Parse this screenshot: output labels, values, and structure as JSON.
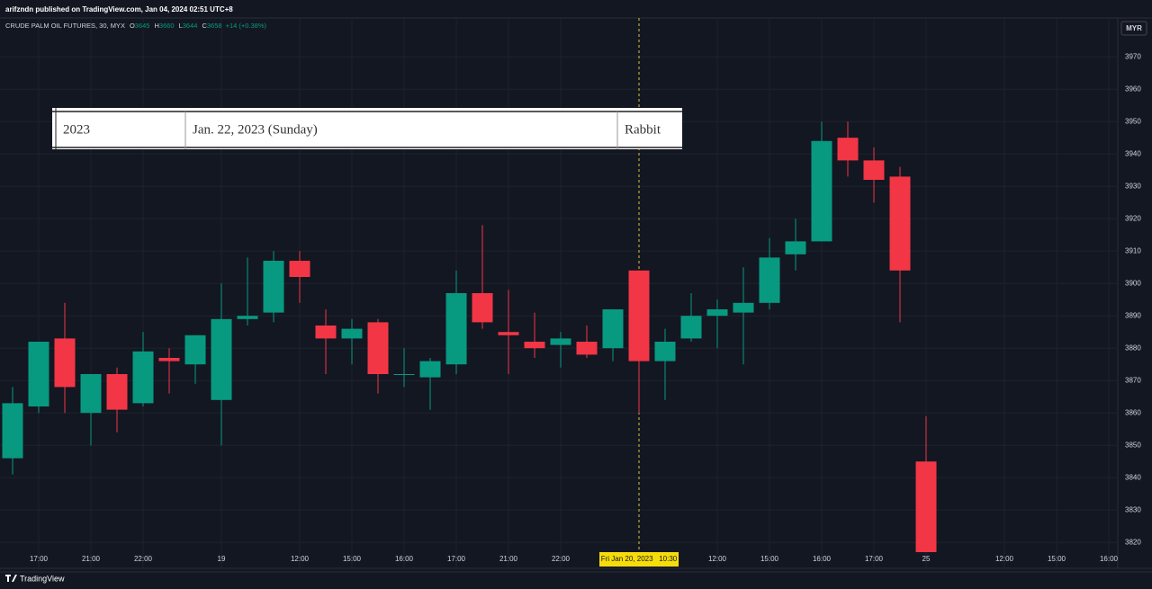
{
  "header": {
    "publisher": "arifzndn published on TradingView.com, Jan 04, 2024 02:51 UTC+8"
  },
  "chart_data": {
    "type": "candlestick",
    "legend": {
      "name": "CRUDE PALM OIL FUTURES, 30, MYX",
      "items": [
        {
          "label": "O",
          "value": 3645
        },
        {
          "label": "H",
          "value": 3660
        },
        {
          "label": "L",
          "value": 3644
        },
        {
          "label": "C",
          "value": 3658
        }
      ],
      "change": "+14 (+0.38%)"
    },
    "currency": "MYR",
    "categories": [
      null,
      "17:00",
      null,
      "21:00",
      null,
      "22:00",
      null,
      null,
      "19",
      null,
      null,
      "12:00",
      null,
      "15:00",
      null,
      "16:00",
      null,
      "17:00",
      null,
      "21:00",
      null,
      "22:00",
      null,
      null,
      null,
      null,
      null,
      "12:00",
      null,
      "15:00",
      null,
      "16:00",
      null,
      "17:00",
      null,
      "25",
      null,
      null,
      "12:00",
      null,
      "15:00",
      null,
      "16:00"
    ],
    "crosshair": {
      "category": 24,
      "label": "Fri Jan 20, 2023   10:30"
    },
    "open": [
      3846,
      3862,
      3883,
      3860,
      3872,
      3863,
      3877,
      3875,
      3864,
      3889,
      3891,
      3907,
      3887,
      3883,
      3888,
      3872,
      3871,
      3875,
      3897,
      3885,
      3882,
      3881,
      3882,
      3880,
      3904,
      3876,
      3883,
      3890,
      3891,
      3894,
      3909,
      3913,
      3945,
      3938,
      3933,
      3845,
      null,
      null,
      null,
      null,
      null,
      null,
      null
    ],
    "high": [
      3868,
      3882,
      3894,
      3872,
      3874,
      3885,
      3880,
      3884,
      3900,
      3908,
      3910,
      3910,
      3892,
      3889,
      3889,
      3880,
      3877,
      3904,
      3918,
      3898,
      3891,
      3885,
      3887,
      3892,
      3904,
      3886,
      3897,
      3895,
      3905,
      3914,
      3920,
      3950,
      3950,
      3942,
      3936,
      3859,
      null,
      null,
      null,
      null,
      null,
      null,
      null
    ],
    "low": [
      3841,
      3860,
      3860,
      3850,
      3854,
      3862,
      3866,
      3869,
      3850,
      3887,
      3888,
      3894,
      3872,
      3875,
      3866,
      3868,
      3861,
      3872,
      3886,
      3872,
      3877,
      3874,
      3877,
      3876,
      3860,
      3864,
      3882,
      3880,
      3875,
      3892,
      3904,
      3913,
      3933,
      3925,
      3888,
      3817,
      null,
      null,
      null,
      null,
      null,
      null,
      null
    ],
    "close": [
      3863,
      3882,
      3868,
      3872,
      3861,
      3879,
      3876,
      3884,
      3889,
      3890,
      3907,
      3902,
      3883,
      3886,
      3872,
      3872,
      3876,
      3897,
      3888,
      3884,
      3880,
      3883,
      3878,
      3892,
      3876,
      3882,
      3890,
      3892,
      3894,
      3908,
      3913,
      3944,
      3938,
      3932,
      3904,
      3817,
      null,
      null,
      null,
      null,
      null,
      null,
      null
    ],
    "up_color": "#089981",
    "down_color": "#f23645",
    "ylim": [
      3812,
      3982
    ],
    "yticks": [
      3820,
      3830,
      3840,
      3850,
      3860,
      3870,
      3880,
      3890,
      3900,
      3910,
      3920,
      3930,
      3940,
      3950,
      3960,
      3970
    ],
    "grid": true
  },
  "overlay_table": {
    "cells": [
      "2023",
      "Jan. 22, 2023 (Sunday)",
      "Rabbit"
    ]
  },
  "footer": {
    "brand": "TradingView"
  }
}
